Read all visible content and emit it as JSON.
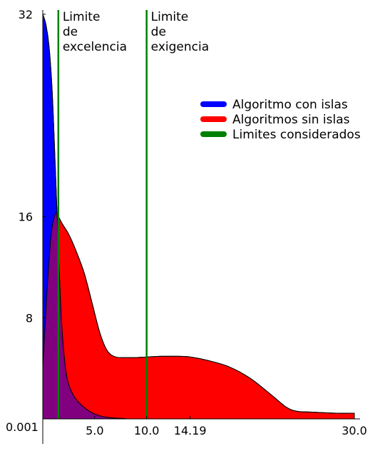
{
  "chart_data": {
    "type": "area",
    "xlim": [
      0.001,
      30.0
    ],
    "ylim": [
      0.001,
      32
    ],
    "x_ticks": [
      {
        "value": 5.0,
        "label": "5.0"
      },
      {
        "value": 10.0,
        "label": "10.0"
      },
      {
        "value": 14.19,
        "label": "14.19"
      },
      {
        "value": 30.0,
        "label": "30.0"
      }
    ],
    "x_origin_label": "0.001",
    "y_ticks": [
      {
        "value": 8,
        "label": "8"
      },
      {
        "value": 16,
        "label": "16"
      },
      {
        "value": 32,
        "label": "32"
      }
    ],
    "grid": false,
    "legend_position": "top-right",
    "series": [
      {
        "name": "Algoritmo con islas",
        "color": "#0000ff",
        "x": [
          0.001,
          0.3,
          0.6,
          0.9,
          1.2,
          1.5,
          1.8,
          2.1,
          2.4,
          2.8,
          3.2,
          3.6,
          4.0,
          4.6,
          5.2,
          6.0,
          7.0,
          8.0
        ],
        "y": [
          32,
          31.2,
          29.5,
          26.0,
          20.0,
          13.5,
          7.8,
          4.6,
          3.0,
          2.1,
          1.55,
          1.2,
          0.9,
          0.55,
          0.32,
          0.15,
          0.06,
          0.03
        ]
      },
      {
        "name": "Algoritmos sin islas",
        "color": "#ff0000",
        "x": [
          0.001,
          0.4,
          0.8,
          1.2,
          1.5,
          1.9,
          2.5,
          3.2,
          4.0,
          4.8,
          5.5,
          6.2,
          7.0,
          8.0,
          9.0,
          10.0,
          11.5,
          13.0,
          14.19,
          16.0,
          18.0,
          20.0,
          22.0,
          23.5,
          24.5,
          25.5,
          27.0,
          28.5,
          30.0
        ],
        "y": [
          4.0,
          10.0,
          14.5,
          16.2,
          16.0,
          15.4,
          14.6,
          13.3,
          11.5,
          9.0,
          6.8,
          5.4,
          4.9,
          4.85,
          4.85,
          4.9,
          4.95,
          4.95,
          4.9,
          4.6,
          4.1,
          3.2,
          1.9,
          0.9,
          0.6,
          0.55,
          0.5,
          0.45,
          0.45
        ]
      },
      {
        "name": "Limites considerados",
        "color": "#008000",
        "x_lines": [
          1.5,
          10.0
        ]
      }
    ],
    "overlap_color": "#800080",
    "annotations": [
      {
        "x": 1.5,
        "lines": [
          "Limite",
          "de",
          "excelencia"
        ]
      },
      {
        "x": 10.0,
        "lines": [
          "Limite",
          "de",
          "exigencia"
        ]
      }
    ]
  }
}
